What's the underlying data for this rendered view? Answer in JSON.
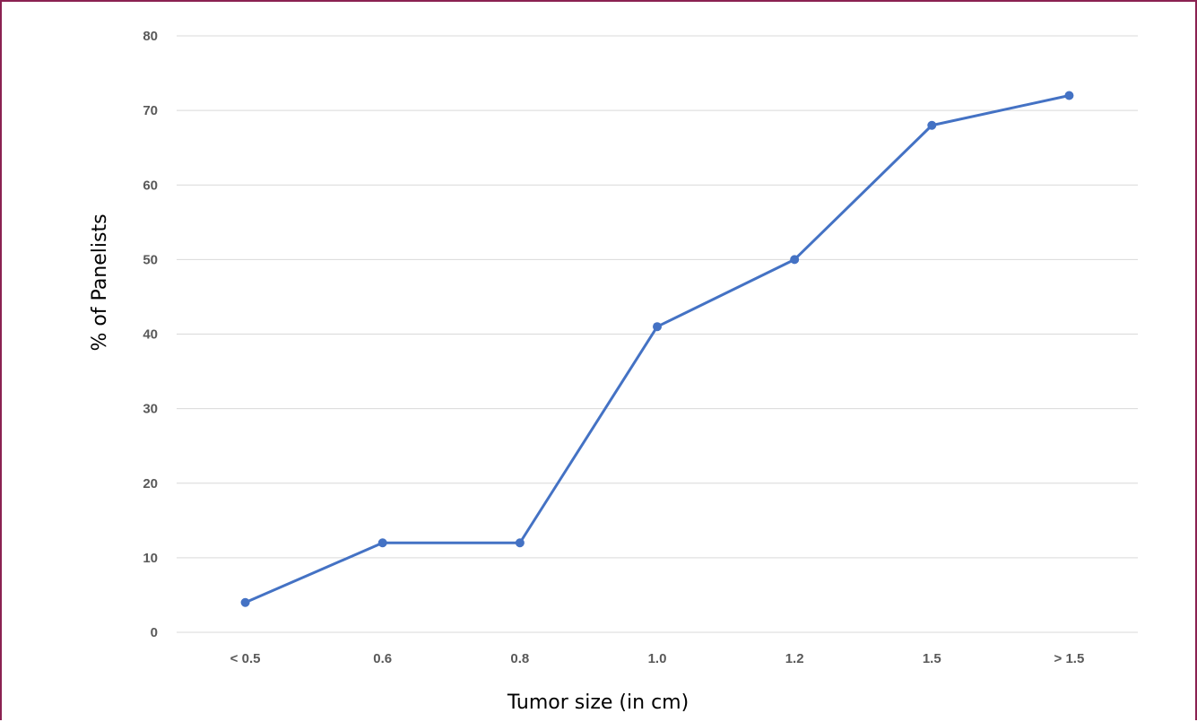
{
  "chart_data": {
    "type": "line",
    "title": "",
    "xlabel": "Tumor size (in cm)",
    "ylabel": "% of Panelists",
    "categories": [
      "< 0.5",
      "0.6",
      "0.8",
      "1.0",
      "1.2",
      "1.5",
      "> 1.5"
    ],
    "series": [
      {
        "values": [
          4,
          12,
          12,
          41,
          50,
          68,
          72
        ]
      }
    ],
    "ylim": [
      0,
      80
    ],
    "yticks": [
      0,
      10,
      20,
      30,
      40,
      50,
      60,
      70,
      80
    ],
    "grid": true,
    "legend": "none",
    "line_color": "#4472C4",
    "grid_color": "#D9D9D9",
    "frame_color": "#8B2252"
  }
}
